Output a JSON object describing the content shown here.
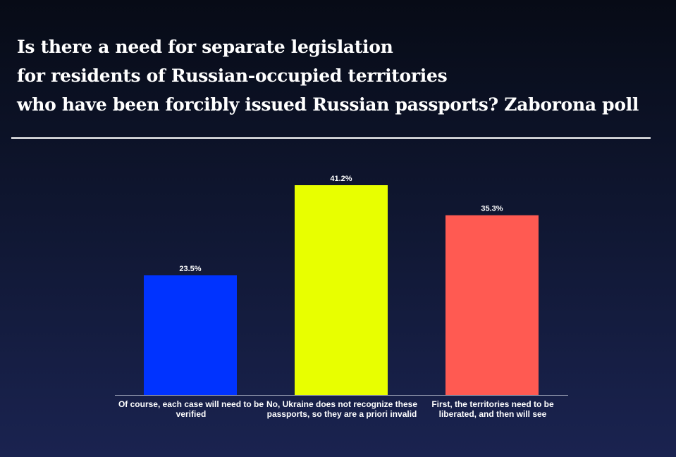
{
  "title_lines": [
    "Is there a need for separate legislation",
    "for residents of Russian-occupied territories",
    "who have been forcibly issued Russian passports? Zaborona poll"
  ],
  "chart_data": {
    "type": "bar",
    "title": "Is there a need for separate legislation for residents of Russian-occupied territories who have been forcibly issued Russian passports? Zaborona poll",
    "categories": [
      "Of course, each case will need to be verified",
      "No, Ukraine does not recognize these passports, so they are a priori invalid",
      "First, the territories need to be liberated, and then will see"
    ],
    "values": [
      23.5,
      41.2,
      35.3
    ],
    "value_labels": [
      "23.5%",
      "41.2%",
      "35.3%"
    ],
    "colors": [
      "#0033ff",
      "#e8ff00",
      "#ff5a52"
    ],
    "xlabel": "",
    "ylabel": "",
    "ylim": [
      0,
      50
    ],
    "grid": false,
    "legend": "none"
  }
}
